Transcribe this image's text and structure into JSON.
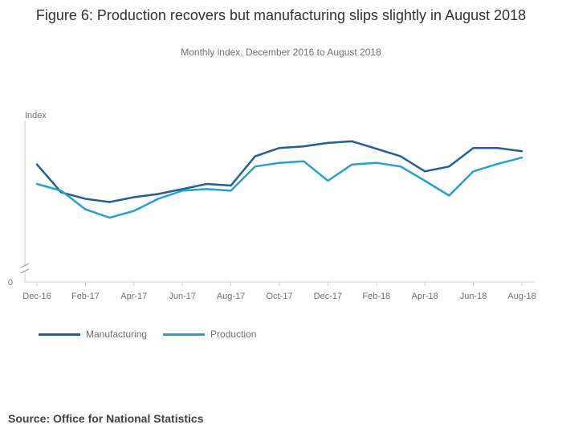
{
  "header": {
    "title": "Figure 6: Production recovers but manufacturing slips slightly in August 2018",
    "subtitle": "Monthly index, December 2016 to August 2018"
  },
  "footer": {
    "source": "Source: Office for National Statistics"
  },
  "colors": {
    "manufacturing": "#206095",
    "production": "#27a0cc",
    "axis": "#cccccc",
    "text": "#707071"
  },
  "chart_data": {
    "type": "line",
    "title": "Figure 6: Production recovers but manufacturing slips slightly in August 2018",
    "subtitle": "Monthly index, December 2016 to August 2018",
    "ylabel": "Index",
    "xlabel": "",
    "y_tick_labels": [
      "0"
    ],
    "y_axis_break": true,
    "x": [
      "Dec-16",
      "Jan-17",
      "Feb-17",
      "Mar-17",
      "Apr-17",
      "May-17",
      "Jun-17",
      "Jul-17",
      "Aug-17",
      "Sep-17",
      "Oct-17",
      "Nov-17",
      "Dec-17",
      "Jan-18",
      "Feb-18",
      "Mar-18",
      "Apr-18",
      "May-18",
      "Jun-18",
      "Jul-18",
      "Aug-18"
    ],
    "x_tick_labels": [
      "Dec-16",
      "Feb-17",
      "Apr-17",
      "Jun-17",
      "Aug-17",
      "Oct-17",
      "Dec-17",
      "Feb-18",
      "Apr-18",
      "Jun-18",
      "Aug-18"
    ],
    "ylim": [
      0,
      100
    ],
    "grid": false,
    "legend": "bottom-left",
    "series": [
      {
        "name": "Manufacturing",
        "values": [
          72.8,
          55.5,
          51.5,
          49.5,
          52.5,
          54.5,
          57.5,
          60.7,
          59.7,
          77.8,
          83.0,
          84.0,
          86.1,
          87.1,
          82.5,
          77.8,
          68.5,
          71.5,
          83.0,
          83.0,
          81.0
        ]
      },
      {
        "name": "Production",
        "values": [
          60.7,
          56.5,
          45.0,
          39.8,
          44.0,
          51.5,
          56.5,
          57.5,
          56.5,
          71.5,
          73.8,
          74.8,
          62.7,
          72.8,
          73.8,
          71.5,
          62.7,
          53.5,
          68.5,
          73.1,
          77.0
        ]
      }
    ]
  }
}
